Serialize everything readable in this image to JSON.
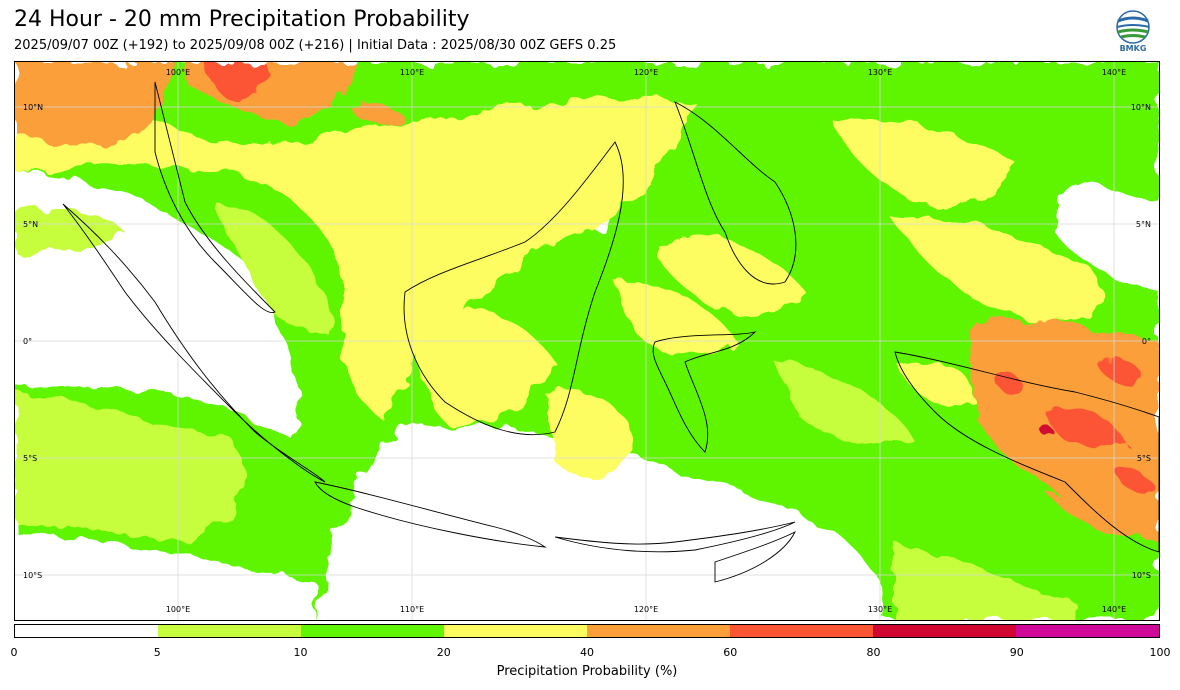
{
  "title": "24 Hour - 20 mm Precipitation Probability",
  "subtitle": "2025/09/07 00Z (+192) to 2025/09/08 00Z (+216) | Initial Data : 2025/08/30 00Z GEFS 0.25",
  "logo": {
    "icon": "bmkg-globe-icon",
    "text": "BMKG"
  },
  "map": {
    "lon_range": [
      95,
      144
    ],
    "lat_range": [
      -12,
      12
    ],
    "top_lon_labels": [
      "100°E",
      "110°E",
      "120°E",
      "130°E",
      "140°E"
    ],
    "bottom_lon_labels": [
      "100°E",
      "110°E",
      "120°E",
      "130°E",
      "140°E"
    ],
    "left_lat_labels": [
      "10°N",
      "5°N",
      "0°",
      "5°S",
      "10°S"
    ],
    "right_lat_labels": [
      "10°N",
      "5°N",
      "0°",
      "5°S",
      "10°S"
    ],
    "gridlines": true
  },
  "colorbar": {
    "title": "Precipitation Probability (%)",
    "ticks": [
      "0",
      "5",
      "10",
      "20",
      "40",
      "60",
      "80",
      "90",
      "100"
    ],
    "colors": [
      "#ffffff",
      "#c6fd3d",
      "#5ff503",
      "#fdfd62",
      "#fb9f3b",
      "#fb5534",
      "#d10732",
      "#d00898"
    ]
  }
}
